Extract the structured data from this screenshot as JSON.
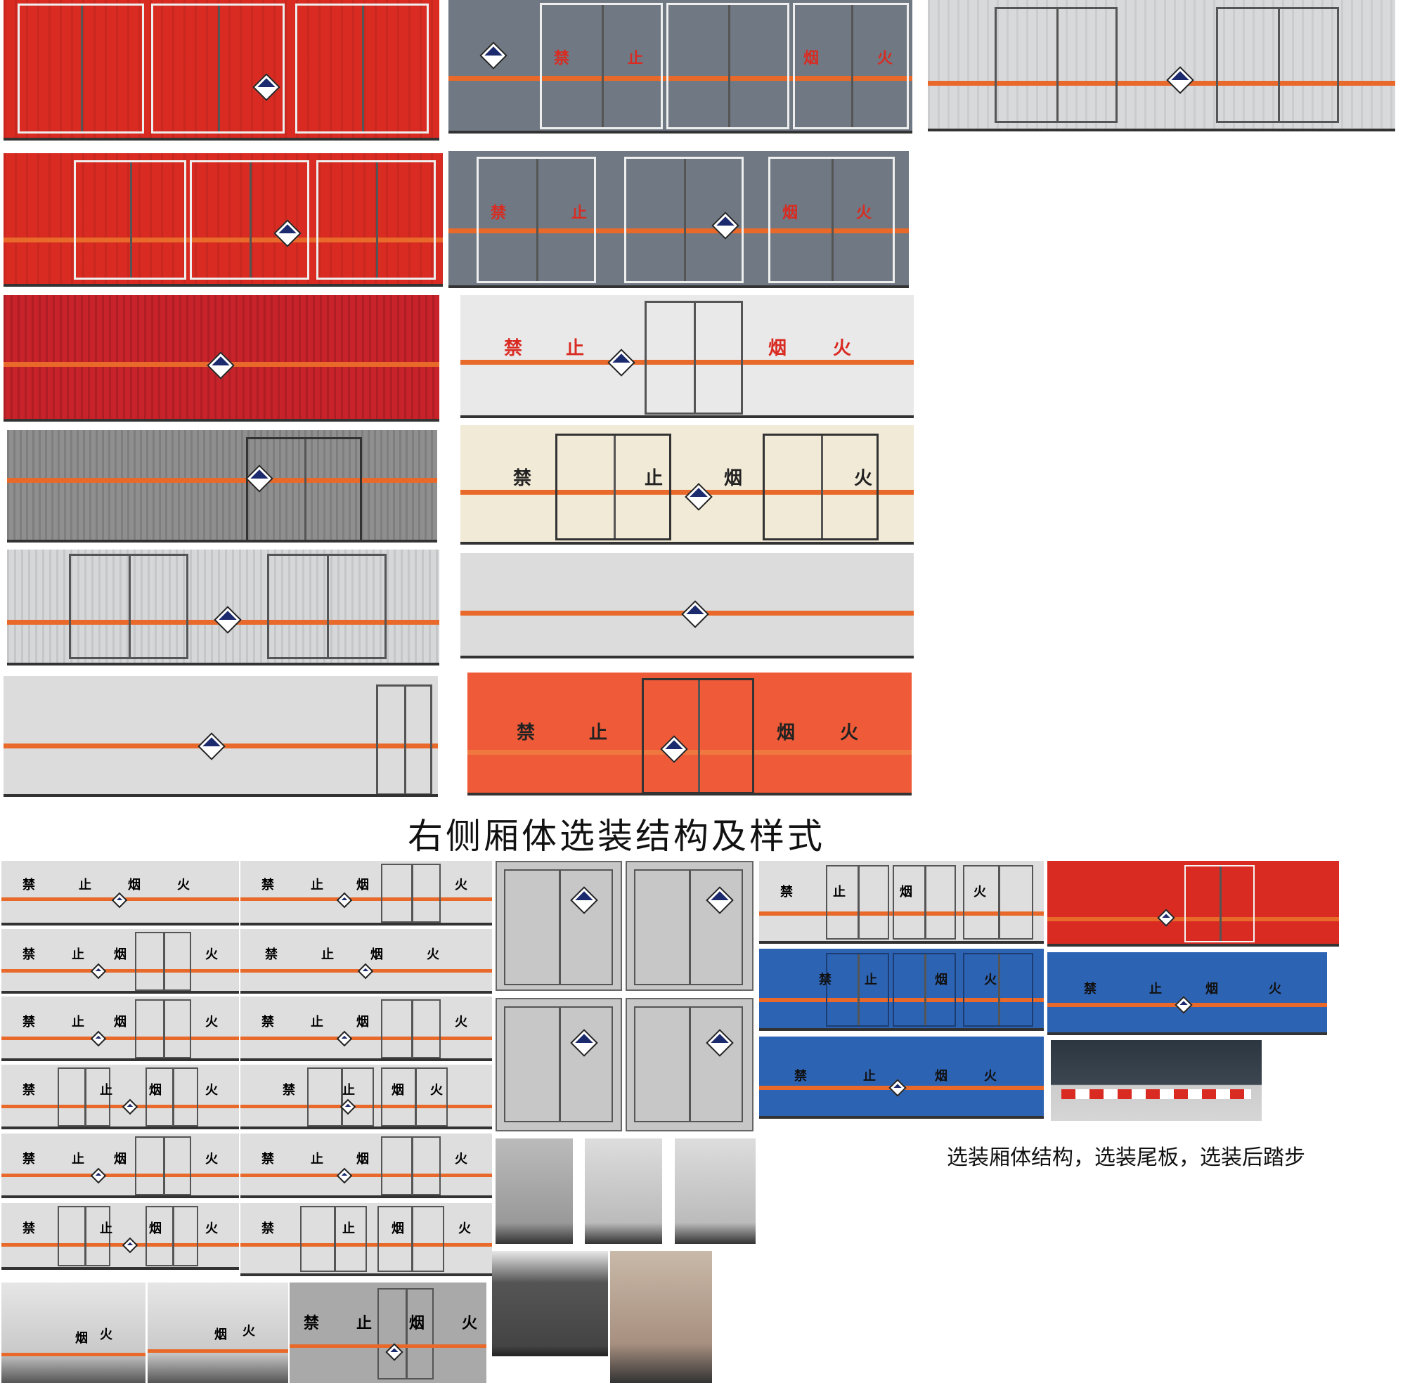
{
  "captions": {
    "right_side_title": "右侧厢体选装结构及样式",
    "options_title": "选装厢体结构，选装尾板，选装后踏步"
  },
  "sign_chars": [
    "禁",
    "止",
    "烟",
    "火"
  ],
  "colors": {
    "red": "#d92b22",
    "grey_blue": "#6f7883",
    "light_grey": "#d8d9da",
    "cream": "#f1ead6",
    "blue": "#2d63b3",
    "stripe": "#e8692a"
  }
}
